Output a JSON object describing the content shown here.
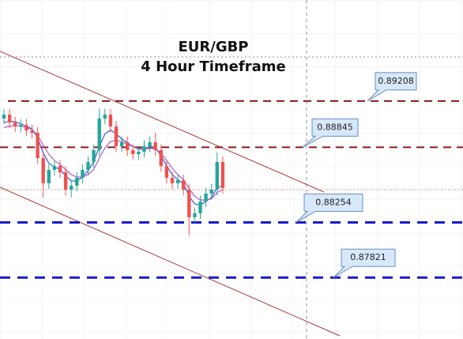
{
  "chart_data": {
    "type": "candlestick",
    "title": "EUR/GBP",
    "subtitle": "4 Hour Timeframe",
    "ylim": [
      0.87338,
      0.90002
    ],
    "up_color": "#26a69a",
    "down_color": "#ef5350",
    "open": [
      0.8907,
      0.89101,
      0.89039,
      0.89008,
      0.8902,
      0.88977,
      0.88958,
      0.8876,
      0.88562,
      0.88667,
      0.88698,
      0.88648,
      0.88512,
      0.88543,
      0.88605,
      0.88667,
      0.88729,
      0.88822,
      0.8907,
      0.89101,
      0.89008,
      0.88853,
      0.88884,
      0.88822,
      0.88791,
      0.8881,
      0.88853,
      0.88884,
      0.88822,
      0.88698,
      0.88605,
      0.88562,
      0.88586,
      0.88512,
      0.88295,
      0.88326,
      0.88419,
      0.88481,
      0.88512,
      0.88729
    ],
    "high": [
      0.89146,
      0.89146,
      0.89084,
      0.89065,
      0.89065,
      0.89022,
      0.89003,
      0.88805,
      0.88712,
      0.88743,
      0.88743,
      0.88693,
      0.88588,
      0.8865,
      0.88712,
      0.88774,
      0.88867,
      0.8915,
      0.89146,
      0.89146,
      0.89053,
      0.88929,
      0.88929,
      0.88867,
      0.88855,
      0.88898,
      0.88929,
      0.8896,
      0.88867,
      0.88743,
      0.8865,
      0.88631,
      0.88631,
      0.88557,
      0.88371,
      0.88464,
      0.88526,
      0.88557,
      0.88805,
      0.88774
    ],
    "low": [
      0.89025,
      0.88994,
      0.88963,
      0.88963,
      0.88932,
      0.88913,
      0.88715,
      0.8845,
      0.88517,
      0.88622,
      0.88603,
      0.88467,
      0.8845,
      0.88498,
      0.8856,
      0.88622,
      0.88684,
      0.88777,
      0.89025,
      0.88963,
      0.88808,
      0.88808,
      0.88777,
      0.88746,
      0.88746,
      0.88765,
      0.88808,
      0.88777,
      0.88653,
      0.8856,
      0.88517,
      0.88517,
      0.88467,
      0.8815,
      0.8825,
      0.88281,
      0.88374,
      0.88436,
      0.88467,
      0.88479
    ],
    "close": [
      0.89101,
      0.89039,
      0.89008,
      0.8902,
      0.88977,
      0.88958,
      0.8876,
      0.88562,
      0.88667,
      0.88698,
      0.88648,
      0.88512,
      0.88543,
      0.88605,
      0.88667,
      0.88729,
      0.88822,
      0.8907,
      0.89101,
      0.89008,
      0.88853,
      0.88884,
      0.88822,
      0.88791,
      0.8881,
      0.88853,
      0.88884,
      0.88822,
      0.88698,
      0.88605,
      0.88562,
      0.88586,
      0.88512,
      0.88295,
      0.88326,
      0.88419,
      0.88481,
      0.88512,
      0.88729,
      0.88524
    ],
    "series": [
      {
        "color": "#3b5bdb",
        "values": [
          0.8904,
          0.8905,
          0.89045,
          0.8903,
          0.8901,
          0.8899,
          0.8892,
          0.888,
          0.8872,
          0.8869,
          0.8867,
          0.8862,
          0.8858,
          0.8858,
          0.8861,
          0.8866,
          0.8873,
          0.8885,
          0.8895,
          0.8898,
          0.8895,
          0.8891,
          0.8888,
          0.8885,
          0.8883,
          0.8883,
          0.8885,
          0.8884,
          0.8878,
          0.887,
          0.8863,
          0.8859,
          0.8856,
          0.8846,
          0.884,
          0.8839,
          0.8842,
          0.8845,
          0.8853,
          0.8854
        ]
      },
      {
        "color": "#b05cc8",
        "values": [
          0.89,
          0.8901,
          0.89015,
          0.8901,
          0.89,
          0.88985,
          0.8894,
          0.8886,
          0.8879,
          0.8874,
          0.8871,
          0.8867,
          0.8863,
          0.8861,
          0.8861,
          0.8863,
          0.8867,
          0.8876,
          0.8884,
          0.8889,
          0.889,
          0.8889,
          0.8887,
          0.8885,
          0.88835,
          0.8883,
          0.88835,
          0.88835,
          0.888,
          0.8874,
          0.8868,
          0.8863,
          0.8859,
          0.8852,
          0.8846,
          0.8843,
          0.8843,
          0.8844,
          0.8849,
          0.8851
        ]
      }
    ],
    "levels": [
      {
        "value": 0.89208,
        "color": "#8b1a1a"
      },
      {
        "value": 0.88845,
        "color": "#8b1a1a"
      },
      {
        "value": 0.88254,
        "color": "#1a1acc"
      },
      {
        "value": 0.87821,
        "color": "#1a1acc"
      }
    ]
  }
}
